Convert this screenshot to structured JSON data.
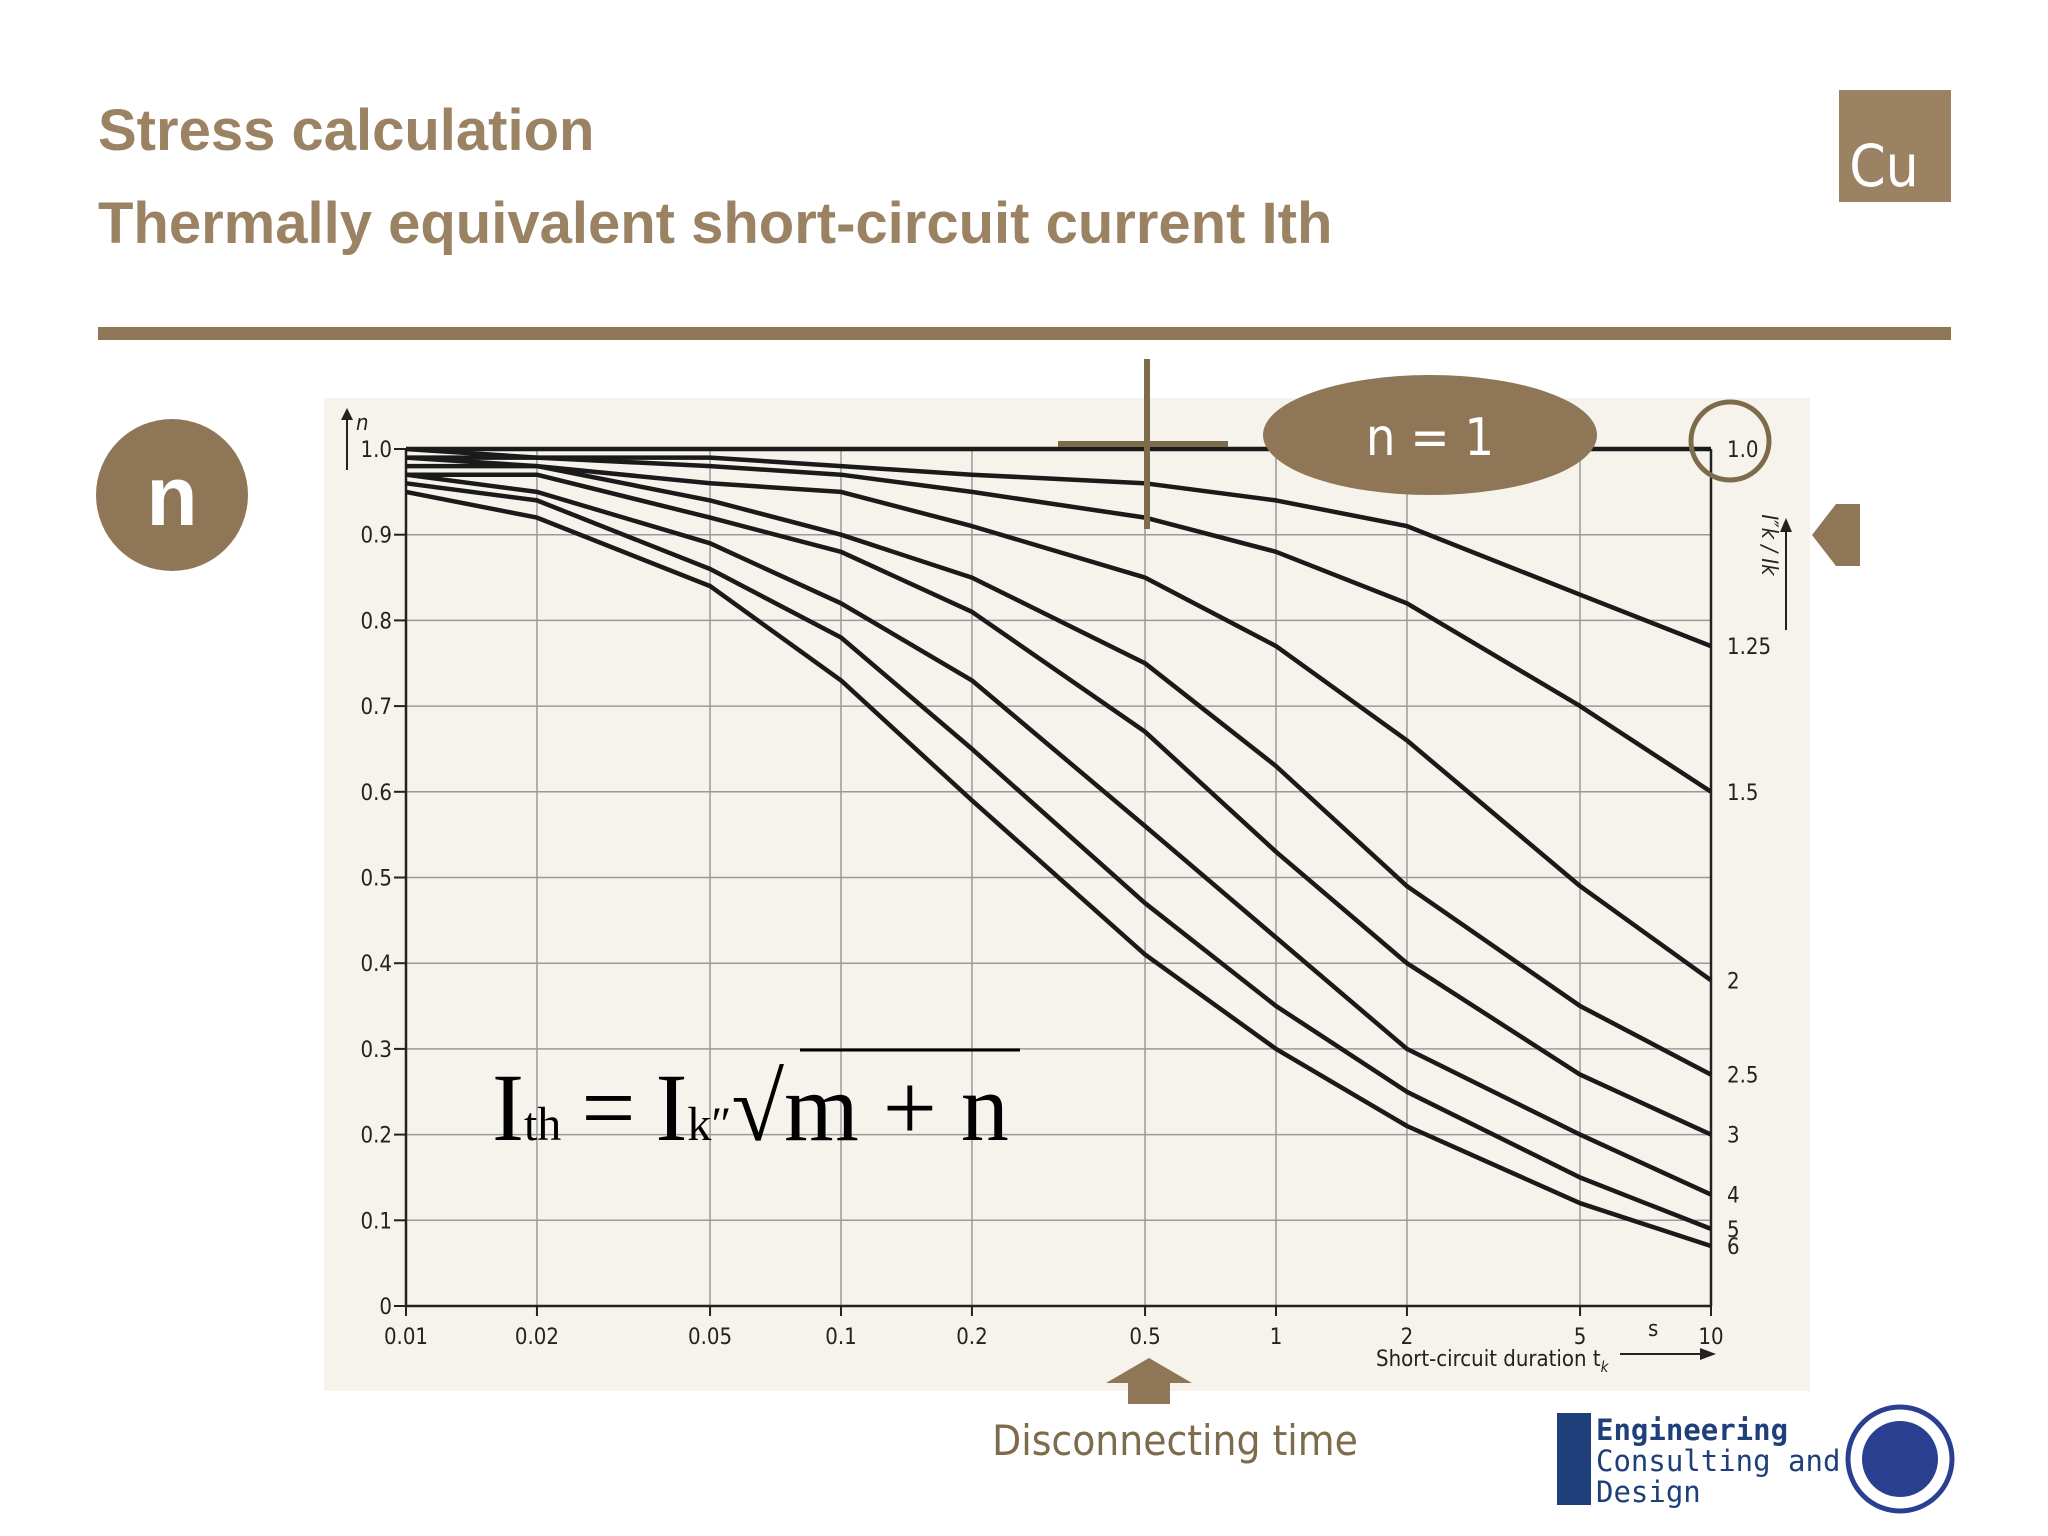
{
  "header": {
    "title": "Stress calculation",
    "subtitle": "Thermally equivalent short-circuit current Ith",
    "badge": "Cu"
  },
  "symbol": "n",
  "callout": "n = 1",
  "formula": {
    "lhs": "I",
    "lhs_sub": "th",
    "equals": "=",
    "rhs": "I",
    "rhs_sub": "k″",
    "root": "√",
    "radicand": "m + n"
  },
  "pointer_label": "Disconnecting time",
  "logo": [
    "Engineering",
    "Consulting and",
    "Design"
  ],
  "chart_data": {
    "type": "line",
    "ylabel": "n",
    "xlabel": "Short-circuit duration t",
    "xlabel_sub": "k",
    "x_unit": "s",
    "right_label": "I″k / Ik",
    "log_x": true,
    "grid": true,
    "x": [
      0.01,
      0.02,
      0.05,
      0.1,
      0.2,
      0.5,
      1,
      2,
      5,
      10
    ],
    "xlim": [
      0.01,
      10
    ],
    "xticks": [
      0.01,
      0.02,
      0.05,
      0.1,
      0.2,
      0.5,
      1,
      2,
      5,
      10
    ],
    "ylim": [
      0,
      1
    ],
    "yticks": [
      0,
      0.1,
      0.2,
      0.3,
      0.4,
      0.5,
      0.6,
      0.7,
      0.8,
      0.9,
      {
        "value": 1,
        "label": "1.0"
      }
    ],
    "series": [
      {
        "name": "1.0",
        "color": "#1a1a1a",
        "values": [
          1,
          1,
          1,
          1,
          1,
          1,
          1,
          1,
          1,
          1
        ]
      },
      {
        "name": "1.25",
        "color": "#1a1a1a",
        "values": [
          1,
          0.99,
          0.99,
          0.98,
          0.97,
          0.96,
          0.94,
          0.91,
          0.83,
          0.77
        ]
      },
      {
        "name": "1.5",
        "color": "#1a1a1a",
        "values": [
          0.99,
          0.99,
          0.98,
          0.97,
          0.95,
          0.92,
          0.88,
          0.82,
          0.7,
          0.6
        ]
      },
      {
        "name": "2",
        "color": "#1a1a1a",
        "values": [
          0.99,
          0.98,
          0.96,
          0.95,
          0.91,
          0.85,
          0.77,
          0.66,
          0.49,
          0.38
        ]
      },
      {
        "name": "2.5",
        "color": "#1a1a1a",
        "values": [
          0.98,
          0.98,
          0.94,
          0.9,
          0.85,
          0.75,
          0.63,
          0.49,
          0.35,
          0.27
        ]
      },
      {
        "name": "3",
        "color": "#1a1a1a",
        "values": [
          0.97,
          0.97,
          0.92,
          0.88,
          0.81,
          0.67,
          0.53,
          0.4,
          0.27,
          0.2
        ]
      },
      {
        "name": "4",
        "color": "#1a1a1a",
        "values": [
          0.97,
          0.95,
          0.89,
          0.82,
          0.73,
          0.56,
          0.43,
          0.3,
          0.2,
          0.13
        ]
      },
      {
        "name": "5",
        "color": "#1a1a1a",
        "values": [
          0.96,
          0.94,
          0.86,
          0.78,
          0.65,
          0.47,
          0.35,
          0.25,
          0.15,
          0.09
        ]
      },
      {
        "name": "6",
        "color": "#1a1a1a",
        "values": [
          0.95,
          0.92,
          0.84,
          0.73,
          0.59,
          0.41,
          0.3,
          0.21,
          0.12,
          0.07
        ]
      }
    ]
  }
}
